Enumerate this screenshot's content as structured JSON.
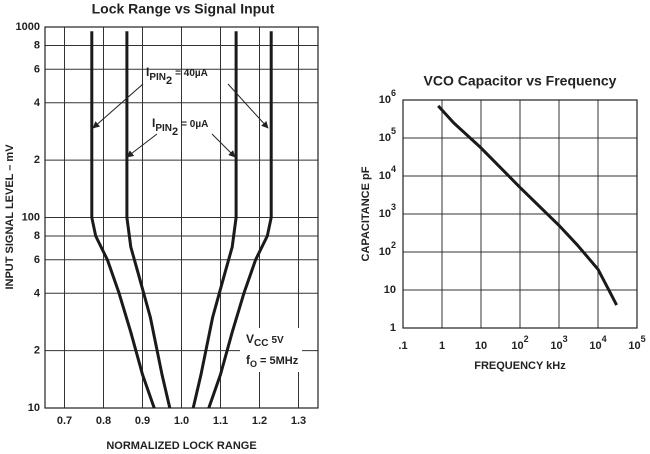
{
  "chart_data": [
    {
      "type": "line",
      "title": "Lock Range vs Signal Input",
      "xlabel": "NORMALIZED LOCK RANGE",
      "ylabel": "INPUT SIGNAL LEVEL – mV",
      "xlim": [
        0.65,
        1.35
      ],
      "ylim": [
        10,
        1000
      ],
      "yscale": "log",
      "grid": true,
      "xticks": [
        0.7,
        0.8,
        0.9,
        {
          "value": 1,
          "label": "1.0"
        },
        1.1,
        1.2,
        1.3
      ],
      "yticks": [
        10,
        {
          "value": 20,
          "label": "2"
        },
        {
          "value": 40,
          "label": "4"
        },
        {
          "value": 60,
          "label": "6"
        },
        {
          "value": 80,
          "label": "8"
        },
        100,
        {
          "value": 200,
          "label": "2"
        },
        {
          "value": 400,
          "label": "4"
        },
        {
          "value": 600,
          "label": "6"
        },
        {
          "value": 800,
          "label": "8"
        },
        1000
      ],
      "series": [
        {
          "color": "#1a1a1a",
          "x": [
            0.77,
            0.77,
            0.78,
            0.81,
            0.84,
            0.87,
            0.9,
            0.93
          ],
          "values": [
            950,
            100,
            80,
            60,
            40,
            25,
            15,
            10
          ]
        },
        {
          "color": "#1a1a1a",
          "x": [
            0.86,
            0.86,
            0.87,
            0.89,
            0.92,
            0.95,
            0.97
          ],
          "values": [
            950,
            100,
            70,
            50,
            30,
            15,
            10
          ]
        },
        {
          "color": "#1a1a1a",
          "x": [
            1.14,
            1.14,
            1.13,
            1.11,
            1.08,
            1.05,
            1.03
          ],
          "values": [
            950,
            100,
            70,
            50,
            30,
            15,
            10
          ]
        },
        {
          "color": "#1a1a1a",
          "x": [
            1.23,
            1.23,
            1.22,
            1.19,
            1.16,
            1.13,
            1.1,
            1.07
          ],
          "values": [
            950,
            100,
            80,
            60,
            40,
            25,
            15,
            10
          ]
        }
      ],
      "annotations": [
        [
          "I",
          "PIN",
          "2",
          "= 40µA"
        ],
        [
          "I",
          "PIN",
          "2",
          "= 0µA"
        ],
        [
          "V",
          "CC",
          "5V"
        ],
        [
          "f",
          "O",
          "= 5MHz"
        ]
      ]
    },
    {
      "type": "line",
      "title": "VCO Capacitor vs Frequency",
      "xlabel": "FREQUENCY kHz",
      "ylabel": "CAPACITANCE pF",
      "xlim": [
        0.1,
        100000
      ],
      "ylim": [
        1,
        1000000
      ],
      "xscale": "log",
      "yscale": "log",
      "grid": true,
      "xticks": [
        {
          "value": 0.1,
          "label": ".1"
        },
        1,
        10,
        {
          "value": 100,
          "label": "10",
          "power": "2"
        },
        {
          "value": 1000,
          "label": "10",
          "power": "3"
        },
        {
          "value": 10000,
          "label": "10",
          "power": "4"
        },
        {
          "value": 100000,
          "label": "10",
          "power": "5"
        }
      ],
      "yticks": [
        1,
        10,
        {
          "value": 100,
          "label": "10",
          "power": "2"
        },
        {
          "value": 1000,
          "label": "10",
          "power": "3"
        },
        {
          "value": 10000,
          "label": "10",
          "power": "4"
        },
        {
          "value": 100000,
          "label": "10",
          "power": "5"
        },
        {
          "value": 1000000,
          "label": "10",
          "power": "6"
        }
      ],
      "series": [
        {
          "color": "#1a1a1a",
          "x": [
            0.8,
            2,
            10,
            100,
            1000,
            3000,
            10000,
            20000,
            30000
          ],
          "values": [
            700000,
            250000,
            55000,
            5000,
            500,
            150,
            35,
            9,
            4
          ]
        }
      ]
    }
  ]
}
